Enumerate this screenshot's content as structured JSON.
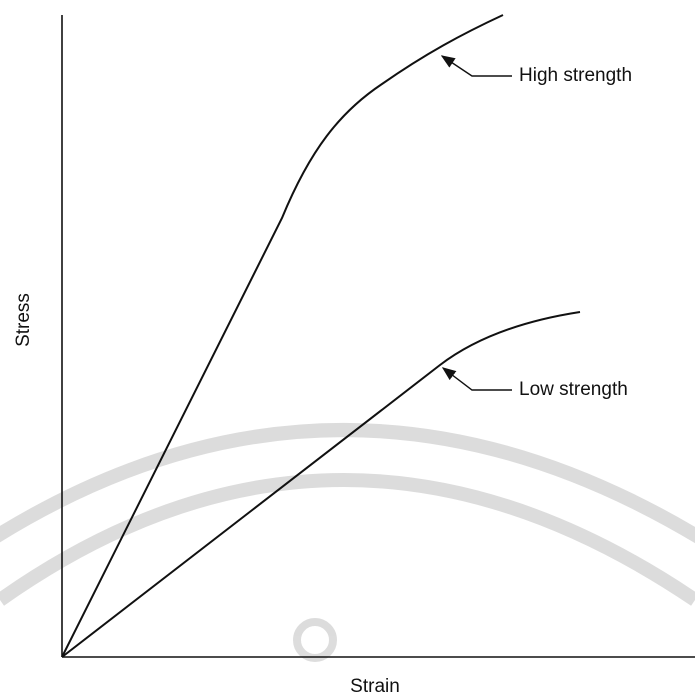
{
  "labels": {
    "high": "High strength",
    "low": "Low strength"
  },
  "axes": {
    "x": "Strain",
    "y": "Stress"
  }
}
